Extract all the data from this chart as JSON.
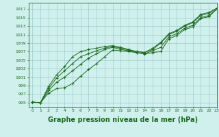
{
  "background_color": "#d0f0ee",
  "grid_color": "#a0cccc",
  "line_color": "#1a6b1a",
  "marker_color": "#1a6b1a",
  "xlabel": "Graphe pression niveau de la mer (hPa)",
  "xlabel_fontsize": 7,
  "xlim": [
    -0.5,
    23
  ],
  "ylim": [
    994,
    1018.5
  ],
  "yticks": [
    995,
    997,
    999,
    1001,
    1003,
    1005,
    1007,
    1009,
    1011,
    1013,
    1015,
    1017
  ],
  "xticks": [
    0,
    1,
    2,
    3,
    4,
    5,
    6,
    7,
    8,
    9,
    10,
    11,
    12,
    13,
    14,
    15,
    16,
    17,
    18,
    19,
    20,
    21,
    22,
    23
  ],
  "series": [
    [
      995.1,
      995.0,
      997.2,
      998.3,
      998.5,
      999.5,
      1001.2,
      1002.8,
      1004.2,
      1005.8,
      1007.4,
      1007.2,
      1007.0,
      1006.8,
      1006.4,
      1006.8,
      1007.0,
      1010.0,
      1010.8,
      1012.2,
      1012.8,
      1014.8,
      1015.2,
      1017.0
    ],
    [
      995.1,
      995.0,
      997.8,
      999.8,
      1001.0,
      1002.5,
      1004.0,
      1005.5,
      1006.5,
      1007.5,
      1008.0,
      1007.5,
      1007.2,
      1006.8,
      1006.5,
      1007.2,
      1008.0,
      1010.5,
      1011.2,
      1012.5,
      1013.2,
      1015.0,
      1015.5,
      1017.0
    ],
    [
      995.1,
      995.0,
      998.3,
      1000.8,
      1002.5,
      1004.2,
      1005.8,
      1006.5,
      1007.2,
      1007.8,
      1008.2,
      1007.8,
      1007.4,
      1007.0,
      1006.8,
      1007.5,
      1009.0,
      1011.0,
      1011.8,
      1013.0,
      1013.8,
      1015.5,
      1016.0,
      1017.2
    ],
    [
      995.1,
      995.0,
      998.8,
      1001.5,
      1003.5,
      1005.8,
      1007.0,
      1007.5,
      1007.8,
      1008.2,
      1008.4,
      1008.0,
      1007.5,
      1007.0,
      1006.8,
      1007.8,
      1009.2,
      1011.2,
      1012.0,
      1013.2,
      1014.0,
      1015.8,
      1016.2,
      1017.2
    ]
  ]
}
